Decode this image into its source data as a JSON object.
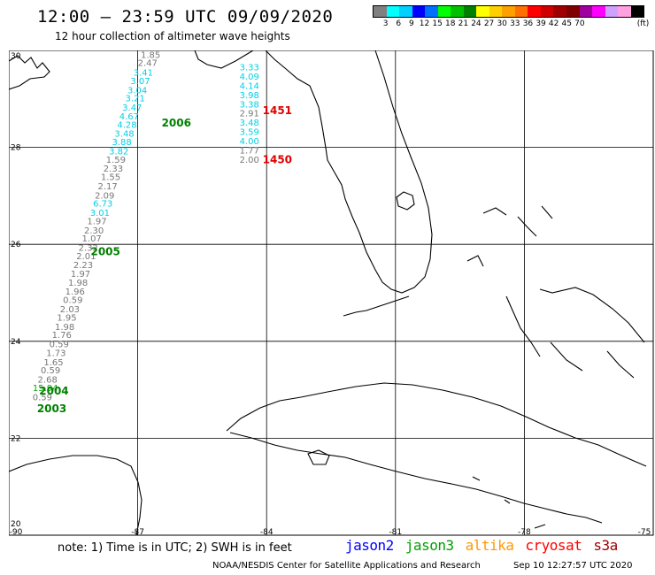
{
  "header": {
    "title": "12:00 – 23:59 UTC 09/09/2020",
    "subtitle": "12 hour collection of altimeter wave heights"
  },
  "colorbar": {
    "colors": [
      "#808080",
      "#00ffff",
      "#00d0ff",
      "#0000ff",
      "#0070ff",
      "#00ff00",
      "#00c000",
      "#008000",
      "#ffff00",
      "#ffd000",
      "#ffa000",
      "#ff7000",
      "#ff0000",
      "#d00000",
      "#a00000",
      "#800000",
      "#a000a0",
      "#ff00ff",
      "#d0a0ff",
      "#ffa0e0",
      "#000000"
    ],
    "labels": [
      "3",
      "6",
      "9",
      "12",
      "15",
      "18",
      "21",
      "24",
      "27",
      "30",
      "33",
      "36",
      "39",
      "42",
      "45",
      "70",
      "(ft)"
    ]
  },
  "chart_data": {
    "type": "scatter",
    "xlim": [
      -90,
      -75
    ],
    "ylim": [
      20,
      30
    ],
    "x_ticks": [
      "-90",
      "-87",
      "-84",
      "-81",
      "-78",
      "-75"
    ],
    "y_ticks": [
      "30",
      "28",
      "26",
      "24",
      "22",
      "20"
    ],
    "x_tick_values": [
      -90,
      -87,
      -84,
      -81,
      -78,
      -75
    ],
    "y_tick_values": [
      30,
      28,
      26,
      24,
      22,
      20
    ],
    "grid": true,
    "track_colors": {
      "gray": "#777777",
      "cyan": "#00d0e8",
      "green": "#00aa00"
    },
    "tracks": [
      {
        "points": [
          {
            "lon": -86.7,
            "lat": 29.92,
            "v": "1.85",
            "c": "gray"
          },
          {
            "lon": -86.77,
            "lat": 29.75,
            "v": "2.47",
            "c": "gray"
          },
          {
            "lon": -86.87,
            "lat": 29.55,
            "v": "3.41",
            "c": "cyan"
          },
          {
            "lon": -86.94,
            "lat": 29.38,
            "v": "3.07",
            "c": "cyan"
          },
          {
            "lon": -87.01,
            "lat": 29.19,
            "v": "3.04",
            "c": "cyan"
          },
          {
            "lon": -87.06,
            "lat": 29.02,
            "v": "3.21",
            "c": "cyan"
          },
          {
            "lon": -87.13,
            "lat": 28.83,
            "v": "3.47",
            "c": "cyan"
          },
          {
            "lon": -87.2,
            "lat": 28.65,
            "v": "4.67",
            "c": "cyan"
          },
          {
            "lon": -87.25,
            "lat": 28.48,
            "v": "4.28",
            "c": "cyan"
          },
          {
            "lon": -87.31,
            "lat": 28.29,
            "v": "3.48",
            "c": "cyan"
          },
          {
            "lon": -87.37,
            "lat": 28.12,
            "v": "3.88",
            "c": "cyan"
          },
          {
            "lon": -87.44,
            "lat": 27.93,
            "v": "3.82",
            "c": "cyan"
          },
          {
            "lon": -87.51,
            "lat": 27.76,
            "v": "1.59",
            "c": "gray"
          },
          {
            "lon": -87.57,
            "lat": 27.57,
            "v": "2.33",
            "c": "gray"
          },
          {
            "lon": -87.63,
            "lat": 27.4,
            "v": "1.55",
            "c": "gray"
          },
          {
            "lon": -87.7,
            "lat": 27.21,
            "v": "2.17",
            "c": "gray"
          },
          {
            "lon": -87.77,
            "lat": 27.02,
            "v": "2.09",
            "c": "gray"
          },
          {
            "lon": -87.81,
            "lat": 26.85,
            "v": "6.73",
            "c": "cyan"
          },
          {
            "lon": -87.88,
            "lat": 26.66,
            "v": "3.01",
            "c": "cyan"
          },
          {
            "lon": -87.95,
            "lat": 26.49,
            "v": "1.97",
            "c": "gray"
          },
          {
            "lon": -88.02,
            "lat": 26.3,
            "v": "2.30",
            "c": "gray"
          },
          {
            "lon": -88.07,
            "lat": 26.13,
            "v": "1.07",
            "c": "gray"
          },
          {
            "lon": -88.15,
            "lat": 25.94,
            "v": "2.32",
            "c": "gray"
          },
          {
            "lon": -88.2,
            "lat": 25.77,
            "v": "2.01",
            "c": "gray"
          },
          {
            "lon": -88.27,
            "lat": 25.58,
            "v": "2.23",
            "c": "gray"
          },
          {
            "lon": -88.33,
            "lat": 25.4,
            "v": "1.97",
            "c": "gray"
          },
          {
            "lon": -88.39,
            "lat": 25.22,
            "v": "1.98",
            "c": "gray"
          },
          {
            "lon": -88.46,
            "lat": 25.04,
            "v": "1.96",
            "c": "gray"
          },
          {
            "lon": -88.51,
            "lat": 24.86,
            "v": "0.59",
            "c": "gray"
          },
          {
            "lon": -88.58,
            "lat": 24.67,
            "v": "2.03",
            "c": "gray"
          },
          {
            "lon": -88.65,
            "lat": 24.5,
            "v": "1.95",
            "c": "gray"
          },
          {
            "lon": -88.7,
            "lat": 24.31,
            "v": "1.98",
            "c": "gray"
          },
          {
            "lon": -88.77,
            "lat": 24.14,
            "v": "1.76",
            "c": "gray"
          },
          {
            "lon": -88.83,
            "lat": 23.95,
            "v": "0.59",
            "c": "gray"
          },
          {
            "lon": -88.9,
            "lat": 23.77,
            "v": "1.73",
            "c": "gray"
          },
          {
            "lon": -88.96,
            "lat": 23.58,
            "v": "1.65",
            "c": "gray"
          },
          {
            "lon": -89.03,
            "lat": 23.41,
            "v": "0.59",
            "c": "gray"
          },
          {
            "lon": -89.1,
            "lat": 23.22,
            "v": "2.68",
            "c": "gray"
          },
          {
            "lon": -89.15,
            "lat": 23.05,
            "v": "15.94",
            "c": "green"
          },
          {
            "lon": -89.22,
            "lat": 22.86,
            "v": "0.59",
            "c": "gray"
          }
        ]
      },
      {
        "points": [
          {
            "lon": -84.4,
            "lat": 29.66,
            "v": "3.33",
            "c": "cyan"
          },
          {
            "lon": -84.4,
            "lat": 29.47,
            "v": "4.09",
            "c": "cyan"
          },
          {
            "lon": -84.4,
            "lat": 29.28,
            "v": "4.14",
            "c": "cyan"
          },
          {
            "lon": -84.4,
            "lat": 29.09,
            "v": "3.98",
            "c": "cyan"
          },
          {
            "lon": -84.4,
            "lat": 28.9,
            "v": "3.38",
            "c": "cyan"
          },
          {
            "lon": -84.4,
            "lat": 28.71,
            "v": "2.91",
            "c": "gray"
          },
          {
            "lon": -84.4,
            "lat": 28.52,
            "v": "3.48",
            "c": "cyan"
          },
          {
            "lon": -84.4,
            "lat": 28.33,
            "v": "3.59",
            "c": "cyan"
          },
          {
            "lon": -84.4,
            "lat": 28.14,
            "v": "4.00",
            "c": "cyan"
          },
          {
            "lon": -84.4,
            "lat": 27.95,
            "v": "1.77",
            "c": "gray"
          },
          {
            "lon": -84.4,
            "lat": 27.76,
            "v": "2.00",
            "c": "gray"
          }
        ]
      }
    ],
    "pass_labels": [
      {
        "lon": -86.1,
        "lat": 28.5,
        "text": "2006",
        "color": "#008000"
      },
      {
        "lon": -87.75,
        "lat": 25.85,
        "text": "2005",
        "color": "#008000"
      },
      {
        "lon": -88.95,
        "lat": 22.97,
        "text": "2004",
        "color": "#008000"
      },
      {
        "lon": -89.0,
        "lat": 22.61,
        "text": "2003",
        "color": "#008000"
      },
      {
        "lon": -83.75,
        "lat": 28.76,
        "text": "1451",
        "color": "#e00000"
      },
      {
        "lon": -83.75,
        "lat": 27.75,
        "text": "1450",
        "color": "#e00000"
      }
    ]
  },
  "footer": {
    "note": "note: 1) Time is in UTC; 2) SWH is in feet",
    "missions": [
      {
        "name": "jason2",
        "color": "#0000ff"
      },
      {
        "name": "jason3",
        "color": "#00a000"
      },
      {
        "name": "altika",
        "color": "#ff9900"
      },
      {
        "name": "cryosat",
        "color": "#ff0000"
      },
      {
        "name": "s3a",
        "color": "#a00000"
      }
    ],
    "credit": "NOAA/NESDIS Center for Satellite Applications and Research",
    "timestamp": "Sep 10 12:27:57 UTC 2020"
  }
}
